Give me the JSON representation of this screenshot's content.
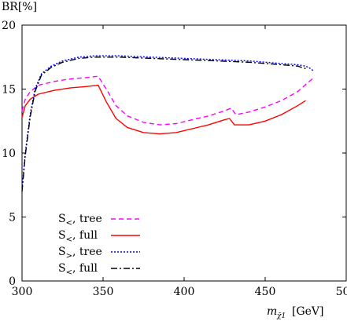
{
  "chart_data": {
    "type": "line",
    "ylabel": "BR[%]",
    "xlabel": "m",
    "xlabel_sub": "χ̃1",
    "xlabel_unit": "[GeV]",
    "xlim": [
      300,
      500
    ],
    "ylim": [
      0,
      20
    ],
    "xticks": [
      300,
      350,
      400,
      450,
      500
    ],
    "yticks": [
      0,
      5,
      10,
      15,
      20
    ],
    "grid": false,
    "legend_placement": "bottom-left",
    "series": [
      {
        "name": "S<, tree",
        "label_base": "S",
        "label_sub": "<",
        "label_text": ", tree",
        "color": "#ff00ff",
        "dash": "6,4",
        "x": [
          300,
          302,
          305,
          310,
          320,
          330,
          340,
          347,
          352,
          358,
          365,
          375,
          385,
          395,
          405,
          415,
          425,
          429,
          432,
          440,
          450,
          460,
          470,
          480
        ],
        "y": [
          13.3,
          14.2,
          14.8,
          15.3,
          15.6,
          15.8,
          15.9,
          16.0,
          15.0,
          13.7,
          12.9,
          12.4,
          12.2,
          12.3,
          12.6,
          12.9,
          13.3,
          13.5,
          13.0,
          13.2,
          13.6,
          14.1,
          14.8,
          15.9
        ]
      },
      {
        "name": "S<, full",
        "label_base": "S",
        "label_sub": "<",
        "label_text": ", full",
        "color": "#ff0000",
        "dash": "",
        "x": [
          300,
          302,
          305,
          310,
          320,
          330,
          340,
          347,
          352,
          358,
          365,
          375,
          385,
          395,
          405,
          415,
          425,
          428,
          431,
          440,
          450,
          460,
          470,
          475
        ],
        "y": [
          12.8,
          13.7,
          14.2,
          14.6,
          14.9,
          15.1,
          15.2,
          15.3,
          14.0,
          12.7,
          12.0,
          11.6,
          11.5,
          11.6,
          11.9,
          12.2,
          12.6,
          12.7,
          12.2,
          12.2,
          12.5,
          13.0,
          13.7,
          14.1
        ]
      },
      {
        "name": "S>, tree",
        "label_base": "S",
        "label_sub": ">",
        "label_text": ", tree",
        "color": "#0000ff",
        "dash": "2,2",
        "x": [
          300,
          302,
          305,
          308,
          312,
          318,
          325,
          335,
          345,
          360,
          380,
          400,
          420,
          440,
          460,
          470,
          475,
          478,
          480
        ],
        "y": [
          7.2,
          10.0,
          13.0,
          15.0,
          16.2,
          16.8,
          17.2,
          17.5,
          17.6,
          17.6,
          17.5,
          17.4,
          17.3,
          17.2,
          17.0,
          16.9,
          16.8,
          16.6,
          16.4
        ]
      },
      {
        "name": "S<, full",
        "label_base": "S",
        "label_sub": "<",
        "label_text": ", full",
        "color": "#000000",
        "dash": "8,3,2,3",
        "x": [
          300,
          302,
          305,
          308,
          312,
          318,
          325,
          335,
          345,
          360,
          380,
          400,
          420,
          440,
          460,
          470,
          475
        ],
        "y": [
          7.0,
          9.8,
          12.8,
          14.8,
          16.1,
          16.7,
          17.1,
          17.4,
          17.5,
          17.5,
          17.4,
          17.3,
          17.2,
          17.1,
          16.9,
          16.8,
          16.6
        ]
      }
    ]
  }
}
